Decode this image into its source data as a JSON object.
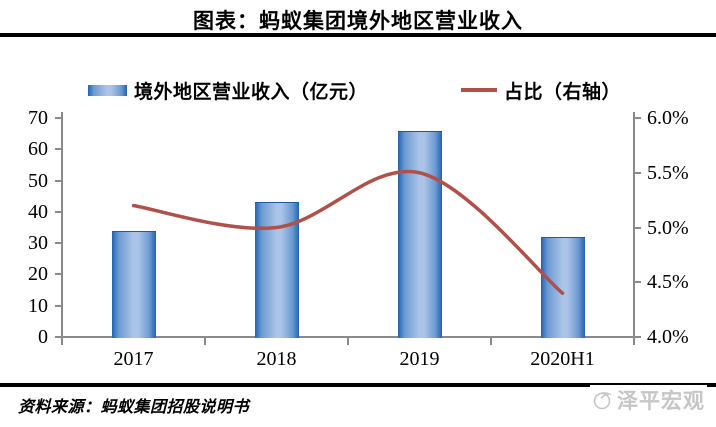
{
  "title": "图表：蚂蚁集团境外地区营业收入",
  "legend": {
    "bar": {
      "label": "境外地区营业收入（亿元）",
      "color_edge": "#2263B0",
      "color_mid": "#6C9AD2",
      "color_light": "#AAC3E7"
    },
    "line": {
      "label": "占比（右轴）",
      "color": "#B05049"
    }
  },
  "chart_data": {
    "type": "combo-bar-line",
    "title": "图表：蚂蚁集团境外地区营业收入",
    "categories": [
      "2017",
      "2018",
      "2019",
      "2020H1"
    ],
    "series": [
      {
        "name": "境外地区营业收入（亿元）",
        "type": "bar",
        "axis": "left",
        "values": [
          34,
          43,
          66,
          32
        ]
      },
      {
        "name": "占比（右轴）",
        "type": "line",
        "axis": "right",
        "values": [
          5.2,
          5.0,
          5.5,
          4.4
        ],
        "unit": "%"
      }
    ],
    "left_axis": {
      "min": 0,
      "max": 70,
      "step": 10,
      "tick_labels": [
        "70",
        "60",
        "50",
        "40",
        "30",
        "20",
        "10",
        "0"
      ]
    },
    "right_axis": {
      "min": 4.0,
      "max": 6.0,
      "step": 0.5,
      "tick_labels": [
        "6.0%",
        "5.5%",
        "5.0%",
        "4.5%",
        "4.0%"
      ]
    },
    "grid": false,
    "legend_position": "top",
    "line_smoothed": true
  },
  "source": "资料来源：蚂蚁集团招股说明书",
  "watermark": "泽平宏观"
}
